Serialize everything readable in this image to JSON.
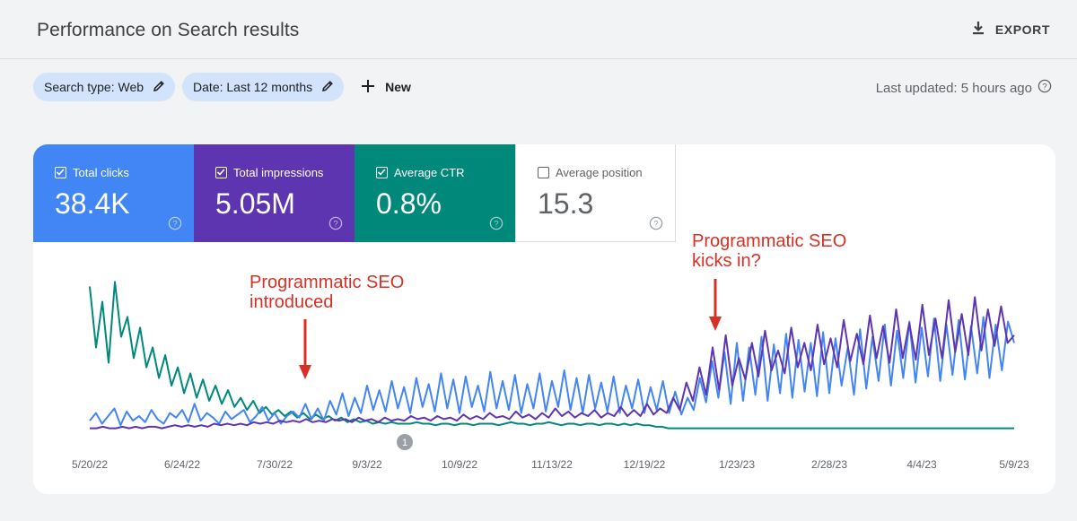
{
  "header": {
    "title": "Performance on Search results",
    "export_label": "EXPORT"
  },
  "filters": {
    "search_type": "Search type: Web",
    "date": "Date: Last 12 months",
    "new_label": "New",
    "last_updated": "Last updated: 5 hours ago"
  },
  "metrics": [
    {
      "label": "Total clicks",
      "value": "38.4K",
      "checked": true,
      "color": "#4285f4"
    },
    {
      "label": "Total impressions",
      "value": "5.05M",
      "checked": true,
      "color": "#5e35b1"
    },
    {
      "label": "Average CTR",
      "value": "0.8%",
      "checked": true,
      "color": "#00897b"
    },
    {
      "label": "Average position",
      "value": "15.3",
      "checked": false,
      "color": "#ffffff"
    }
  ],
  "annotations": {
    "a1_line1": "Programmatic SEO",
    "a1_line2": "introduced",
    "a2_line1": "Programmatic SEO",
    "a2_line2": "kicks in?",
    "marker": "1",
    "color": "#d93025"
  },
  "chart_data": {
    "type": "line",
    "x_tick_labels": [
      "5/20/22",
      "6/24/22",
      "7/30/22",
      "9/3/22",
      "10/9/22",
      "11/13/22",
      "12/19/22",
      "1/23/23",
      "2/28/23",
      "4/4/23",
      "5/9/23"
    ],
    "series": [
      {
        "name": "Total clicks",
        "color": "#4285f4",
        "values": [
          0.07,
          0.12,
          0.05,
          0.1,
          0.15,
          0.04,
          0.13,
          0.07,
          0.1,
          0.06,
          0.14,
          0.08,
          0.05,
          0.12,
          0.09,
          0.14,
          0.06,
          0.18,
          0.07,
          0.12,
          0.09,
          0.05,
          0.13,
          0.08,
          0.11,
          0.14,
          0.06,
          0.1,
          0.16,
          0.07,
          0.12,
          0.05,
          0.1,
          0.13,
          0.09,
          0.18,
          0.08,
          0.15,
          0.07,
          0.2,
          0.11,
          0.25,
          0.1,
          0.22,
          0.12,
          0.3,
          0.14,
          0.27,
          0.13,
          0.33,
          0.15,
          0.29,
          0.12,
          0.35,
          0.16,
          0.31,
          0.13,
          0.38,
          0.15,
          0.34,
          0.12,
          0.36,
          0.16,
          0.3,
          0.13,
          0.39,
          0.15,
          0.33,
          0.14,
          0.37,
          0.12,
          0.31,
          0.15,
          0.38,
          0.13,
          0.33,
          0.16,
          0.4,
          0.14,
          0.35,
          0.12,
          0.37,
          0.15,
          0.32,
          0.13,
          0.36,
          0.12,
          0.3,
          0.15,
          0.34,
          0.12,
          0.29,
          0.14,
          0.33,
          0.12,
          0.26,
          0.11,
          0.22,
          0.14,
          0.35,
          0.19,
          0.46,
          0.22,
          0.52,
          0.18,
          0.58,
          0.2,
          0.55,
          0.24,
          0.62,
          0.2,
          0.57,
          0.25,
          0.64,
          0.22,
          0.6,
          0.26,
          0.58,
          0.23,
          0.65,
          0.25,
          0.61,
          0.3,
          0.55,
          0.24,
          0.67,
          0.28,
          0.62,
          0.33,
          0.7,
          0.3,
          0.66,
          0.35,
          0.72,
          0.32,
          0.68,
          0.36,
          0.74,
          0.33,
          0.7,
          0.37,
          0.73,
          0.34,
          0.69,
          0.38,
          0.75,
          0.35,
          0.7,
          0.4,
          0.72,
          0.58
        ]
      },
      {
        "name": "Total impressions",
        "color": "#5e35b1",
        "values": [
          0.02,
          0.02,
          0.03,
          0.02,
          0.02,
          0.03,
          0.02,
          0.03,
          0.02,
          0.03,
          0.03,
          0.02,
          0.03,
          0.04,
          0.03,
          0.04,
          0.03,
          0.04,
          0.03,
          0.05,
          0.04,
          0.05,
          0.04,
          0.05,
          0.04,
          0.06,
          0.05,
          0.06,
          0.05,
          0.07,
          0.06,
          0.07,
          0.06,
          0.08,
          0.06,
          0.07,
          0.06,
          0.08,
          0.07,
          0.08,
          0.06,
          0.09,
          0.07,
          0.08,
          0.06,
          0.09,
          0.07,
          0.08,
          0.07,
          0.1,
          0.08,
          0.09,
          0.07,
          0.1,
          0.08,
          0.09,
          0.07,
          0.11,
          0.08,
          0.1,
          0.08,
          0.12,
          0.09,
          0.1,
          0.08,
          0.13,
          0.09,
          0.11,
          0.08,
          0.12,
          0.09,
          0.15,
          0.1,
          0.13,
          0.09,
          0.12,
          0.1,
          0.14,
          0.09,
          0.12,
          0.1,
          0.16,
          0.1,
          0.14,
          0.1,
          0.18,
          0.11,
          0.15,
          0.12,
          0.22,
          0.14,
          0.32,
          0.2,
          0.42,
          0.24,
          0.55,
          0.27,
          0.63,
          0.3,
          0.48,
          0.34,
          0.58,
          0.36,
          0.66,
          0.4,
          0.53,
          0.38,
          0.68,
          0.42,
          0.58,
          0.4,
          0.7,
          0.44,
          0.61,
          0.42,
          0.73,
          0.46,
          0.64,
          0.44,
          0.76,
          0.48,
          0.69,
          0.45,
          0.8,
          0.48,
          0.71,
          0.47,
          0.83,
          0.5,
          0.74,
          0.48,
          0.86,
          0.52,
          0.77,
          0.5,
          0.88,
          0.53,
          0.8,
          0.56,
          0.82,
          0.58,
          0.63
        ]
      },
      {
        "name": "Average CTR",
        "color": "#00897b",
        "values": [
          0.95,
          0.55,
          0.85,
          0.45,
          0.98,
          0.62,
          0.75,
          0.48,
          0.68,
          0.42,
          0.55,
          0.35,
          0.5,
          0.3,
          0.42,
          0.25,
          0.38,
          0.22,
          0.34,
          0.2,
          0.3,
          0.18,
          0.27,
          0.16,
          0.22,
          0.14,
          0.2,
          0.12,
          0.16,
          0.11,
          0.14,
          0.1,
          0.13,
          0.09,
          0.12,
          0.08,
          0.11,
          0.08,
          0.1,
          0.07,
          0.09,
          0.06,
          0.08,
          0.06,
          0.07,
          0.05,
          0.06,
          0.05,
          0.06,
          0.05,
          0.05,
          0.05,
          0.06,
          0.05,
          0.05,
          0.04,
          0.05,
          0.05,
          0.04,
          0.05,
          0.05,
          0.04,
          0.05,
          0.05,
          0.05,
          0.04,
          0.05,
          0.06,
          0.05,
          0.05,
          0.04,
          0.05,
          0.05,
          0.06,
          0.05,
          0.04,
          0.05,
          0.05,
          0.04,
          0.05,
          0.05,
          0.04,
          0.05,
          0.05,
          0.04,
          0.05,
          0.04,
          0.05,
          0.04,
          0.04,
          0.03,
          0.03,
          0.02,
          0.02,
          0.02,
          0.02,
          0.02,
          0.02,
          0.02,
          0.02,
          0.02,
          0.02,
          0.02,
          0.02,
          0.02,
          0.02,
          0.02,
          0.02,
          0.02,
          0.02,
          0.02,
          0.02,
          0.02,
          0.02,
          0.02,
          0.02,
          0.02,
          0.02,
          0.02,
          0.02,
          0.02,
          0.02,
          0.02,
          0.02,
          0.02,
          0.02,
          0.02,
          0.02,
          0.02,
          0.02,
          0.02,
          0.02,
          0.02,
          0.02,
          0.02,
          0.02,
          0.02,
          0.02,
          0.02,
          0.02,
          0.02,
          0.02,
          0.02,
          0.02,
          0.02,
          0.02,
          0.02,
          0.02
        ]
      }
    ],
    "ylim": [
      0,
      1
    ],
    "grid": false
  }
}
